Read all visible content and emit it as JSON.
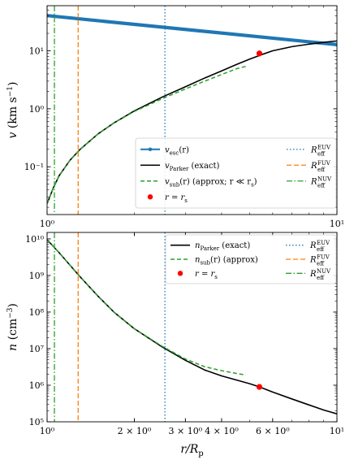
{
  "chart_data": [
    {
      "type": "line",
      "panel": "velocity",
      "xscale": "log",
      "yscale": "log",
      "xlim": [
        1,
        10
      ],
      "ylim": [
        0.015,
        60
      ],
      "xlabel": "",
      "ylabel": "v (km s⁻¹)",
      "ylabel_parts": {
        "var": "v",
        "open": " (",
        "unit": "km s",
        "exp": "−1",
        "close": ")"
      },
      "x_ticks": [
        {
          "value": 1,
          "label": "10⁰"
        },
        {
          "value": 10,
          "label": "10¹"
        }
      ],
      "y_ticks": [
        {
          "value": 0.1,
          "label": "10⁻¹"
        },
        {
          "value": 1,
          "label": "10⁰"
        },
        {
          "value": 10,
          "label": "10¹"
        }
      ],
      "series": [
        {
          "name": "v_esc(r)",
          "legend": {
            "sym": "v",
            "sub": "esc",
            "rest": "(r)"
          },
          "style": "thick",
          "color": "#1f77b4",
          "x": [
            1,
            10
          ],
          "y": [
            40.5,
            12.8
          ]
        },
        {
          "name": "v_Parker (exact)",
          "legend": {
            "sym": "v",
            "sub": "Parker",
            "rest": " (exact)"
          },
          "style": "solid",
          "color": "#000000",
          "x": [
            1.0,
            1.05,
            1.1,
            1.2,
            1.3,
            1.5,
            1.7,
            2.0,
            2.5,
            3.0,
            3.5,
            4.0,
            4.5,
            5.0,
            5.5,
            6.0,
            7.0,
            8.0,
            9.0,
            10.0
          ],
          "y": [
            0.023,
            0.043,
            0.07,
            0.13,
            0.2,
            0.37,
            0.57,
            0.92,
            1.6,
            2.4,
            3.4,
            4.5,
            5.8,
            7.2,
            8.6,
            10.0,
            11.8,
            13.0,
            14.0,
            14.8
          ]
        },
        {
          "name": "v_sub(r) (approx; r ≪ r_s)",
          "legend": {
            "sym": "v",
            "sub": "sub",
            "rest": "(r) (approx; r ≪ r",
            "sub2": "s",
            "tail": ")"
          },
          "style": "dashed",
          "color": "#2ca02c",
          "x": [
            1.0,
            1.05,
            1.1,
            1.2,
            1.3,
            1.5,
            1.7,
            2.0,
            2.5,
            3.0,
            3.5,
            4.0,
            4.5,
            4.85
          ],
          "y": [
            0.023,
            0.043,
            0.07,
            0.13,
            0.2,
            0.37,
            0.57,
            0.9,
            1.5,
            2.2,
            3.0,
            3.9,
            4.9,
            5.4
          ]
        },
        {
          "name": "r = r_s",
          "legend": {
            "sym": "r = r",
            "sub": "s"
          },
          "style": "marker",
          "color": "#ff0000",
          "x": [
            5.4
          ],
          "y": [
            9.0
          ]
        },
        {
          "name": "R_eff^EUV",
          "legend": {
            "sym": "R",
            "sup": "EUV",
            "sub": "eff"
          },
          "style": "dotted",
          "color": "#1f77b4",
          "x": [
            2.55,
            2.55
          ]
        },
        {
          "name": "R_eff^FUV",
          "legend": {
            "sym": "R",
            "sup": "FUV",
            "sub": "eff"
          },
          "style": "dashed-v",
          "color": "#ff7f0e",
          "x": [
            1.28,
            1.28
          ]
        },
        {
          "name": "R_eff^NUV",
          "legend": {
            "sym": "R",
            "sup": "NUV",
            "sub": "eff"
          },
          "style": "dashdot",
          "color": "#2ca02c",
          "x": [
            1.06,
            1.06
          ]
        }
      ]
    },
    {
      "type": "line",
      "panel": "density",
      "xscale": "log",
      "yscale": "log",
      "xlim": [
        1,
        10
      ],
      "ylim": [
        100000,
        15000000000
      ],
      "xlabel": "r/R_p",
      "xlabel_parts": {
        "a": "r/R",
        "sub": "p"
      },
      "ylabel": "n (cm⁻³)",
      "ylabel_parts": {
        "var": "n",
        "open": " (",
        "unit": "cm",
        "exp": "−3",
        "close": ")"
      },
      "x_ticks": [
        {
          "value": 1,
          "label": "10⁰"
        },
        {
          "value": 2,
          "label": "2 × 10⁰"
        },
        {
          "value": 3,
          "label": "3 × 10⁰"
        },
        {
          "value": 4,
          "label": "4 × 10⁰"
        },
        {
          "value": 6,
          "label": "6 × 10⁰"
        },
        {
          "value": 10,
          "label": "10¹"
        }
      ],
      "y_ticks": [
        {
          "value": 100000,
          "label": "10⁵"
        },
        {
          "value": 1000000,
          "label": "10⁶"
        },
        {
          "value": 10000000,
          "label": "10⁷"
        },
        {
          "value": 100000000,
          "label": "10⁸"
        },
        {
          "value": 1000000000,
          "label": "10⁹"
        },
        {
          "value": 10000000000,
          "label": "10¹⁰"
        }
      ],
      "series": [
        {
          "name": "n_Parker (exact)",
          "legend": {
            "sym": "n",
            "sub": "Parker",
            "rest": " (exact)"
          },
          "style": "solid",
          "color": "#000000",
          "x": [
            1.0,
            1.1,
            1.2,
            1.3,
            1.5,
            1.7,
            2.0,
            2.5,
            3.0,
            3.5,
            4.0,
            5.0,
            5.4,
            6.0,
            7.0,
            8.0,
            9.0,
            10.0
          ],
          "y": [
            9500000000,
            4200000000,
            1900000000,
            920000000,
            270000000,
            100000000,
            35000000,
            11000000,
            4800000,
            2600000,
            1800000,
            1100000,
            900000,
            650000,
            420000,
            290000,
            210000,
            165000
          ]
        },
        {
          "name": "n_sub(r) (approx)",
          "legend": {
            "sym": "n",
            "sub": "sub",
            "rest": "(r) (approx)"
          },
          "style": "dashed",
          "color": "#2ca02c",
          "x": [
            1.0,
            1.1,
            1.2,
            1.3,
            1.5,
            1.7,
            2.0,
            2.5,
            3.0,
            3.5,
            4.0,
            4.5,
            4.85
          ],
          "y": [
            9500000000,
            4200000000,
            1900000000,
            920000000,
            270000000,
            100000000,
            35000000,
            11500000,
            5200000,
            3200000,
            2500000,
            2100000,
            1900000
          ]
        },
        {
          "name": "r = r_s",
          "legend": {
            "sym": "r = r",
            "sub": "s"
          },
          "style": "marker",
          "color": "#ff0000",
          "x": [
            5.4
          ],
          "y": [
            900000
          ]
        },
        {
          "name": "R_eff^EUV",
          "legend": {
            "sym": "R",
            "sup": "EUV",
            "sub": "eff"
          },
          "style": "dotted",
          "color": "#1f77b4",
          "x": [
            2.55,
            2.55
          ]
        },
        {
          "name": "R_eff^FUV",
          "legend": {
            "sym": "R",
            "sup": "FUV",
            "sub": "eff"
          },
          "style": "dashed-v",
          "color": "#ff7f0e",
          "x": [
            1.28,
            1.28
          ]
        },
        {
          "name": "R_eff^NUV",
          "legend": {
            "sym": "R",
            "sup": "NUV",
            "sub": "eff"
          },
          "style": "dashdot",
          "color": "#2ca02c",
          "x": [
            1.06,
            1.06
          ]
        }
      ]
    }
  ]
}
